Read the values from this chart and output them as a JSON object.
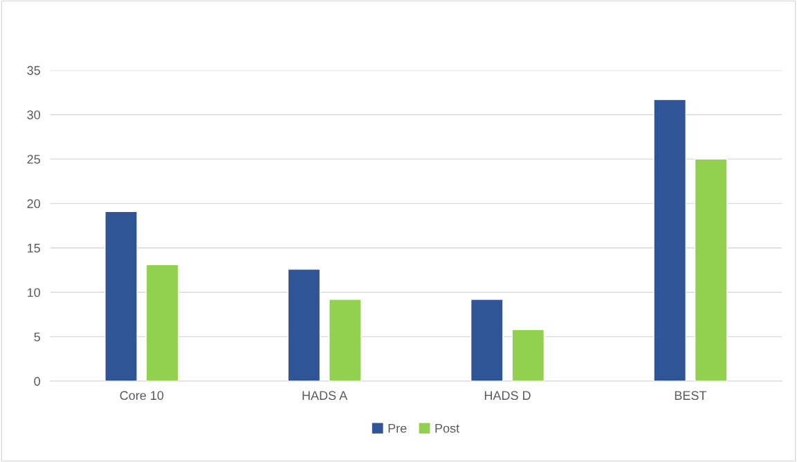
{
  "chart_data": {
    "type": "bar",
    "categories": [
      "Core 10",
      "HADS A",
      "HADS D",
      "BEST"
    ],
    "series": [
      {
        "name": "Pre",
        "color": "#2f5597",
        "values": [
          19.1,
          12.6,
          9.2,
          31.7
        ]
      },
      {
        "name": "Post",
        "color": "#92d050",
        "values": [
          13.1,
          9.2,
          5.8,
          25.0
        ]
      }
    ],
    "ylim": [
      0,
      35
    ],
    "yticks": [
      0,
      5,
      10,
      15,
      20,
      25,
      30,
      35
    ],
    "grid": "y",
    "legend": "bottom"
  }
}
